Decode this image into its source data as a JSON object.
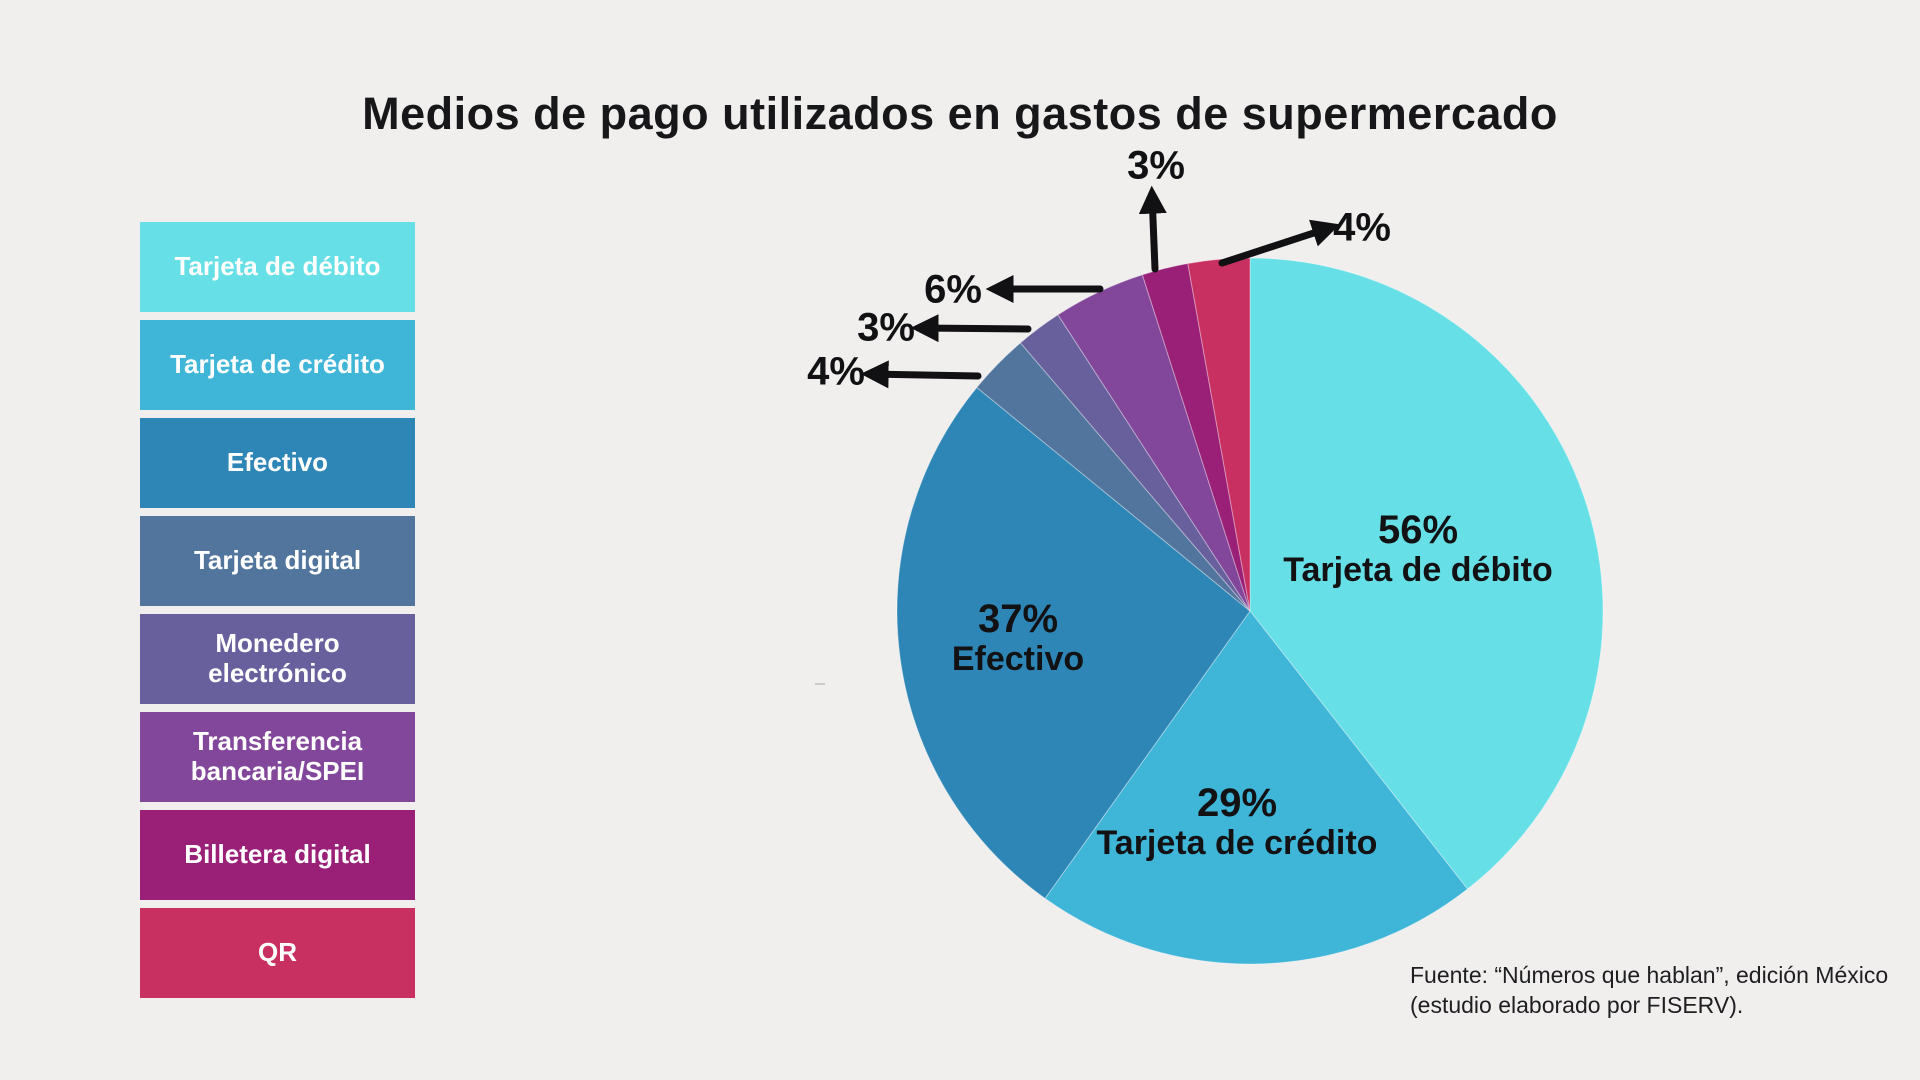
{
  "title": "Medios de pago utilizados en gastos de supermercado",
  "background_color": "#F0EFEE",
  "legend": {
    "position": "left",
    "items": [
      {
        "label": "Tarjeta de débito",
        "color": "#66E0E6"
      },
      {
        "label": "Tarjeta de crédito",
        "color": "#3FB5D8"
      },
      {
        "label": "Efectivo",
        "color": "#2E86B6"
      },
      {
        "label": "Tarjeta digital",
        "color": "#52759D"
      },
      {
        "label": "Monedero electrónico",
        "color": "#67609C"
      },
      {
        "label": "Transferencia bancaria/SPEI",
        "color": "#82479B"
      },
      {
        "label": "Billetera digital",
        "color": "#9A2077"
      },
      {
        "label": "QR",
        "color": "#C93062"
      }
    ]
  },
  "chart_data": {
    "type": "pie",
    "title": "Medios de pago utilizados en gastos de supermercado",
    "categories": [
      "Tarjeta de débito",
      "Tarjeta de crédito",
      "Efectivo",
      "Tarjeta digital",
      "Monedero electrónico",
      "Transferencia bancaria/SPEI",
      "Billetera digital",
      "QR"
    ],
    "values": [
      56,
      29,
      37,
      4,
      3,
      6,
      3,
      4
    ],
    "unit": "%",
    "colors": [
      "#66E0E6",
      "#3FB5D8",
      "#2E86B6",
      "#52759D",
      "#67609C",
      "#82479B",
      "#9A2077",
      "#C93062"
    ],
    "start_angle": "12 o'clock, clockwise",
    "legend_position": "left",
    "grid": false
  },
  "slice_labels": {
    "debito": {
      "pct": "56%",
      "name": "Tarjeta de débito"
    },
    "credito": {
      "pct": "29%",
      "name": "Tarjeta de crédito"
    },
    "efectivo": {
      "pct": "37%",
      "name": "Efectivo"
    },
    "digital_pct": "4%",
    "monedero_pct": "3%",
    "transferencia_pct": "6%",
    "billetera_pct": "3%",
    "qr_pct": "4%"
  },
  "source": {
    "line1": "Fuente: “Números que hablan”, edición México",
    "line2": "(estudio elaborado por FISERV)."
  }
}
